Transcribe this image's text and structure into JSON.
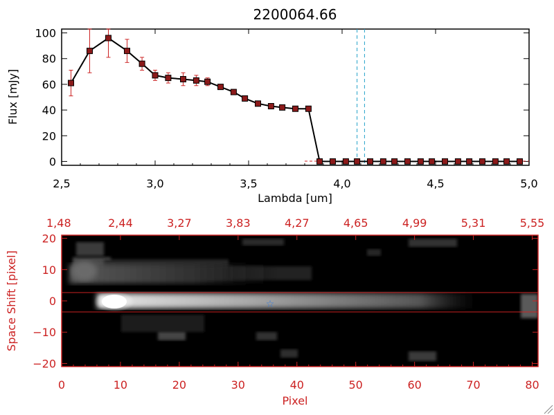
{
  "title": "2200064.66",
  "colors": {
    "axis_top": "#000000",
    "axis_bottom": "#cc2222",
    "line": "#000000",
    "marker": "#8b1a1a",
    "errorbar": "#cc2222",
    "dashed": "#22a0c8",
    "band": "#cc2222",
    "star": "#3a7bd5",
    "bg_image": "#000000"
  },
  "chart_data": [
    {
      "type": "line",
      "title": "2200064.66",
      "xlabel": "Lambda [um]",
      "ylabel": "Flux [mJy]",
      "xlim": [
        2.5,
        5.0
      ],
      "ylim": [
        -3,
        103
      ],
      "xticks": [
        2.5,
        3.0,
        3.5,
        4.0,
        4.5,
        5.0
      ],
      "xtick_labels": [
        "2,5",
        "3,0",
        "3,5",
        "4,0",
        "4,5",
        "5,0"
      ],
      "yticks": [
        0,
        20,
        40,
        60,
        80,
        100
      ],
      "ytick_labels": [
        "0",
        "20",
        "40",
        "60",
        "80",
        "100"
      ],
      "series": [
        {
          "name": "Flux",
          "x": [
            2.55,
            2.65,
            2.75,
            2.85,
            2.93,
            3.0,
            3.07,
            3.15,
            3.22,
            3.28,
            3.35,
            3.42,
            3.48,
            3.55,
            3.62,
            3.68,
            3.75,
            3.82,
            3.88,
            3.95,
            4.02,
            4.08,
            4.15,
            4.22,
            4.28,
            4.35,
            4.42,
            4.48,
            4.55,
            4.62,
            4.68,
            4.75,
            4.82,
            4.88,
            4.95
          ],
          "y": [
            61,
            86,
            96,
            86,
            76,
            67,
            65,
            64,
            63,
            62,
            58,
            54,
            49,
            45,
            43,
            42,
            41,
            41,
            0,
            0,
            0,
            0,
            0,
            0,
            0,
            0,
            0,
            0,
            0,
            0,
            0,
            0,
            0,
            0,
            0
          ],
          "yerr": [
            10,
            17,
            15,
            9,
            5,
            4,
            4,
            5,
            4,
            3,
            2,
            2,
            1.5,
            1.5,
            1,
            1,
            1,
            1,
            0,
            0,
            0,
            0,
            0,
            0,
            0,
            0,
            0,
            0,
            0,
            0,
            0,
            0,
            0,
            0,
            0
          ]
        }
      ],
      "vlines": [
        4.08,
        4.12
      ]
    },
    {
      "type": "heatmap",
      "xlabel": "Pixel",
      "ylabel": "Space Shift [pixel]",
      "xlim": [
        0,
        81
      ],
      "ylim": [
        -21,
        21
      ],
      "xticks": [
        0,
        10,
        20,
        30,
        40,
        50,
        60,
        70,
        80
      ],
      "xtick_labels": [
        "0",
        "10",
        "20",
        "30",
        "40",
        "50",
        "60",
        "70",
        "80"
      ],
      "yticks": [
        -20,
        -10,
        0,
        10,
        20
      ],
      "ytick_labels": [
        "−20",
        "−10",
        "0",
        "10",
        "20"
      ],
      "top_axis_wavelengths": [
        "1,48",
        "2,44",
        "3,27",
        "3,83",
        "4,27",
        "4,65",
        "4,99",
        "5,31",
        "5,55"
      ],
      "band": [
        -3,
        3
      ],
      "star_marker": [
        35.5,
        0
      ]
    }
  ]
}
